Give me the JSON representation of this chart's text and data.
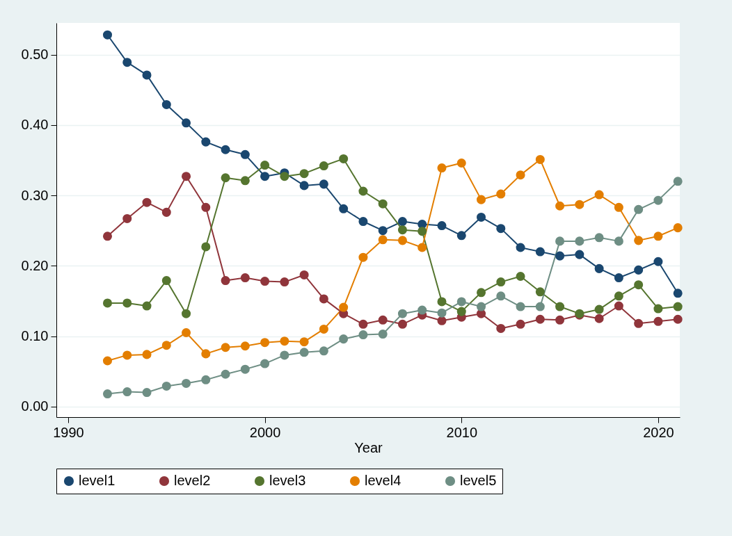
{
  "chart_data": {
    "type": "line",
    "xlabel": "Year",
    "x": [
      1992,
      1993,
      1994,
      1995,
      1996,
      1997,
      1998,
      1999,
      2000,
      2001,
      2002,
      2003,
      2004,
      2005,
      2006,
      2007,
      2008,
      2009,
      2010,
      2011,
      2012,
      2013,
      2014,
      2015,
      2016,
      2017,
      2018,
      2019,
      2020,
      2021
    ],
    "series": [
      {
        "name": "level1",
        "color": "#1a476f",
        "values": [
          0.528,
          0.489,
          0.471,
          0.429,
          0.403,
          0.376,
          0.365,
          0.358,
          0.327,
          0.332,
          0.314,
          0.316,
          0.281,
          0.263,
          0.25,
          0.263,
          0.259,
          0.257,
          0.243,
          0.269,
          0.253,
          0.226,
          0.22,
          0.214,
          0.216,
          0.196,
          0.183,
          0.194,
          0.206,
          0.161
        ]
      },
      {
        "name": "level2",
        "color": "#90353b",
        "values": [
          0.242,
          0.267,
          0.29,
          0.276,
          0.327,
          0.283,
          0.179,
          0.183,
          0.178,
          0.177,
          0.187,
          0.153,
          0.132,
          0.117,
          0.123,
          0.117,
          0.13,
          0.122,
          0.127,
          0.132,
          0.111,
          0.117,
          0.124,
          0.123,
          0.13,
          0.125,
          0.143,
          0.118,
          0.121,
          0.124
        ]
      },
      {
        "name": "level3",
        "color": "#55752f",
        "values": [
          0.147,
          0.147,
          0.143,
          0.179,
          0.132,
          0.227,
          0.325,
          0.321,
          0.343,
          0.327,
          0.331,
          0.342,
          0.352,
          0.306,
          0.288,
          0.251,
          0.249,
          0.149,
          0.135,
          0.162,
          0.177,
          0.185,
          0.163,
          0.142,
          0.132,
          0.138,
          0.157,
          0.173,
          0.139,
          0.142
        ]
      },
      {
        "name": "level4",
        "color": "#e37e00",
        "values": [
          0.065,
          0.073,
          0.074,
          0.087,
          0.105,
          0.075,
          0.084,
          0.086,
          0.091,
          0.093,
          0.092,
          0.11,
          0.141,
          0.212,
          0.237,
          0.236,
          0.226,
          0.339,
          0.346,
          0.294,
          0.302,
          0.329,
          0.351,
          0.285,
          0.287,
          0.301,
          0.283,
          0.236,
          0.242,
          0.254
        ]
      },
      {
        "name": "level5",
        "color": "#6e8e84",
        "values": [
          0.018,
          0.021,
          0.02,
          0.029,
          0.033,
          0.038,
          0.046,
          0.053,
          0.061,
          0.073,
          0.077,
          0.079,
          0.096,
          0.102,
          0.103,
          0.132,
          0.137,
          0.133,
          0.149,
          0.142,
          0.157,
          0.142,
          0.142,
          0.235,
          0.235,
          0.24,
          0.235,
          0.28,
          0.293,
          0.32
        ]
      }
    ],
    "xlim": [
      1989.4,
      2021.1
    ],
    "xticks": [
      1990,
      2000,
      2010,
      2020
    ],
    "ylim": [
      -0.015,
      0.545
    ],
    "yticks": [
      {
        "value": 0,
        "label": "0.00"
      },
      {
        "value": 0.1,
        "label": "0.10"
      },
      {
        "value": 0.2,
        "label": "0.20"
      },
      {
        "value": 0.3,
        "label": "0.30"
      },
      {
        "value": 0.4,
        "label": "0.40"
      },
      {
        "value": 0.5,
        "label": "0.50"
      }
    ],
    "grid": "y",
    "legend": "bottom",
    "marker": "circle",
    "line_style": "solid"
  }
}
